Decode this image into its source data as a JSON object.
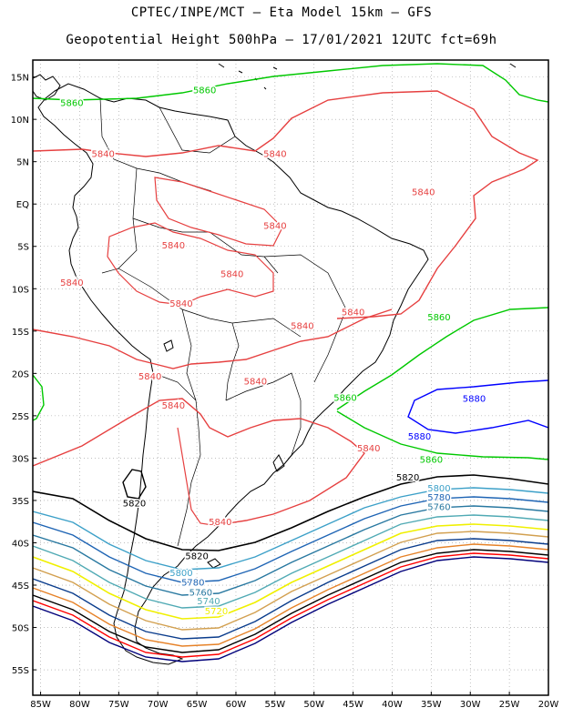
{
  "header": {
    "line1": "CPTEC/INPE/MCT –  Eta Model 15km – GFS",
    "line2": "Geopotential Height 500hPa – 17/01/2021 12UTC fct=69h"
  },
  "map": {
    "lon_range": [
      -86,
      -20
    ],
    "lat_range": [
      17,
      -58
    ],
    "lon_ticks": [
      "85W",
      "80W",
      "75W",
      "70W",
      "65W",
      "60W",
      "55W",
      "50W",
      "45W",
      "40W",
      "35W",
      "30W",
      "25W",
      "20W"
    ],
    "lon_values": [
      -85,
      -80,
      -75,
      -70,
      -65,
      -60,
      -55,
      -50,
      -45,
      -40,
      -35,
      -30,
      -25,
      -20
    ],
    "lat_ticks": [
      "15N",
      "10N",
      "5N",
      "EQ",
      "5S",
      "10S",
      "15S",
      "20S",
      "25S",
      "30S",
      "35S",
      "40S",
      "45S",
      "50S",
      "55S"
    ],
    "lat_values": [
      15,
      10,
      5,
      0,
      -5,
      -10,
      -15,
      -20,
      -25,
      -30,
      -35,
      -40,
      -45,
      -50,
      -55
    ],
    "grid": true
  },
  "colors": {
    "c5880": "#0000ff",
    "c5860": "#00c800",
    "c5840": "#e64040",
    "c5820": "#000000",
    "c5800": "#3ca0c8",
    "c5780": "#1e64b4",
    "c5760": "#2878a0",
    "c5740": "#50aab4",
    "c5720": "#f0f000",
    "c5700": "#d2a050",
    "c5680": "#0a3c8c",
    "c5660": "#e68228",
    "c5640": "#000000",
    "c5620": "#ff0000",
    "c5600": "#00007a"
  },
  "contour_labels": [
    {
      "text": "5860",
      "color": "c5860",
      "lon": -81,
      "lat": 12
    },
    {
      "text": "5860",
      "color": "c5860",
      "lon": -64,
      "lat": 13.5
    },
    {
      "text": "5840",
      "color": "c5840",
      "lon": -77,
      "lat": 6
    },
    {
      "text": "5840",
      "color": "c5840",
      "lon": -55,
      "lat": 6
    },
    {
      "text": "5840",
      "color": "c5840",
      "lon": -36,
      "lat": 1.5
    },
    {
      "text": "5840",
      "color": "c5840",
      "lon": -68,
      "lat": -4.8
    },
    {
      "text": "5840",
      "color": "c5840",
      "lon": -55,
      "lat": -2.5
    },
    {
      "text": "5840",
      "color": "c5840",
      "lon": -60.5,
      "lat": -8.2
    },
    {
      "text": "5840",
      "color": "c5840",
      "lon": -81,
      "lat": -9.2
    },
    {
      "text": "5840",
      "color": "c5840",
      "lon": -67,
      "lat": -11.7
    },
    {
      "text": "5840",
      "color": "c5840",
      "lon": -51.5,
      "lat": -14.3
    },
    {
      "text": "5840",
      "color": "c5840",
      "lon": -45,
      "lat": -12.7
    },
    {
      "text": "5840",
      "color": "c5840",
      "lon": -71,
      "lat": -20.3
    },
    {
      "text": "5840",
      "color": "c5840",
      "lon": -57.5,
      "lat": -20.9
    },
    {
      "text": "5840",
      "color": "c5840",
      "lon": -68,
      "lat": -23.7
    },
    {
      "text": "5840",
      "color": "c5840",
      "lon": -43,
      "lat": -28.8
    },
    {
      "text": "5840",
      "color": "c5840",
      "lon": -62,
      "lat": -37.5
    },
    {
      "text": "5860",
      "color": "c5860",
      "lon": -46,
      "lat": -22.8
    },
    {
      "text": "5860",
      "color": "c5860",
      "lon": -34,
      "lat": -13.3
    },
    {
      "text": "5860",
      "color": "c5860",
      "lon": -35,
      "lat": -30.1
    },
    {
      "text": "5880",
      "color": "c5880",
      "lon": -29.5,
      "lat": -22.9
    },
    {
      "text": "5880",
      "color": "c5880",
      "lon": -36.5,
      "lat": -27.4
    },
    {
      "text": "5820",
      "color": "c5820",
      "lon": -38,
      "lat": -32.2
    },
    {
      "text": "5820",
      "color": "c5820",
      "lon": -73,
      "lat": -35.3
    },
    {
      "text": "5820",
      "color": "c5820",
      "lon": -65,
      "lat": -41.5
    },
    {
      "text": "5800",
      "color": "c5800",
      "lon": -34,
      "lat": -33.5
    },
    {
      "text": "5780",
      "color": "c5780",
      "lon": -34,
      "lat": -34.6
    },
    {
      "text": "5760",
      "color": "c5760",
      "lon": -34,
      "lat": -35.7
    },
    {
      "text": "5800",
      "color": "c5800",
      "lon": -67,
      "lat": -43.5
    },
    {
      "text": "5780",
      "color": "c5780",
      "lon": -65.5,
      "lat": -44.6
    },
    {
      "text": "5760",
      "color": "c5760",
      "lon": -64.5,
      "lat": -45.8
    },
    {
      "text": "5740",
      "color": "c5740",
      "lon": -63.5,
      "lat": -46.8
    },
    {
      "text": "5720",
      "color": "c5720",
      "lon": -62.5,
      "lat": -48
    }
  ]
}
